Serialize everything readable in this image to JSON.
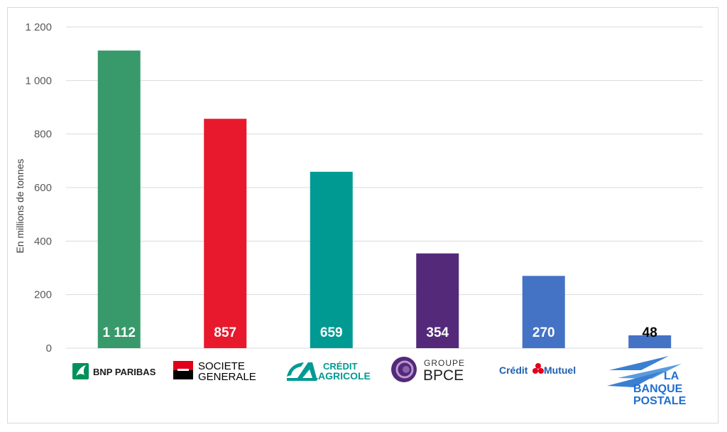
{
  "chart_data": {
    "type": "bar",
    "title": "",
    "xlabel": "",
    "ylabel": "En millions de tonnes",
    "ylim": [
      0,
      1200
    ],
    "yticks": [
      0,
      200,
      400,
      600,
      800,
      1000,
      1200
    ],
    "ytick_labels": [
      "0",
      "200",
      "400",
      "600",
      "800",
      "1 000",
      "1 200"
    ],
    "grid": true,
    "categories": [
      "BNP PARIBAS",
      "SOCIETE GENERALE",
      "CRÉDIT AGRICOLE",
      "GROUPE BPCE",
      "Crédit Mutuel",
      "LA BANQUE POSTALE"
    ],
    "values": [
      1112,
      857,
      659,
      354,
      270,
      48
    ],
    "value_labels": [
      "1 112",
      "857",
      "659",
      "354",
      "270",
      "48"
    ],
    "colors": [
      "#38996a",
      "#e8192c",
      "#009a93",
      "#54297a",
      "#4472c4",
      "#4472c4"
    ],
    "label_colors": [
      "#ffffff",
      "#ffffff",
      "#ffffff",
      "#ffffff",
      "#ffffff",
      "#000000"
    ]
  },
  "logos": {
    "bnp": "BNP PARIBAS",
    "sg_line1": "SOCIETE",
    "sg_line2": "GENERALE",
    "ca_line1": "CRÉDIT",
    "ca_line2": "AGRICOLE",
    "bpce_line1": "GROUPE",
    "bpce_line2": "BPCE",
    "cm_left": "Crédit",
    "cm_right": "Mutuel",
    "lbp_line1": "LA",
    "lbp_line2": "BANQUE",
    "lbp_line3": "POSTALE"
  }
}
